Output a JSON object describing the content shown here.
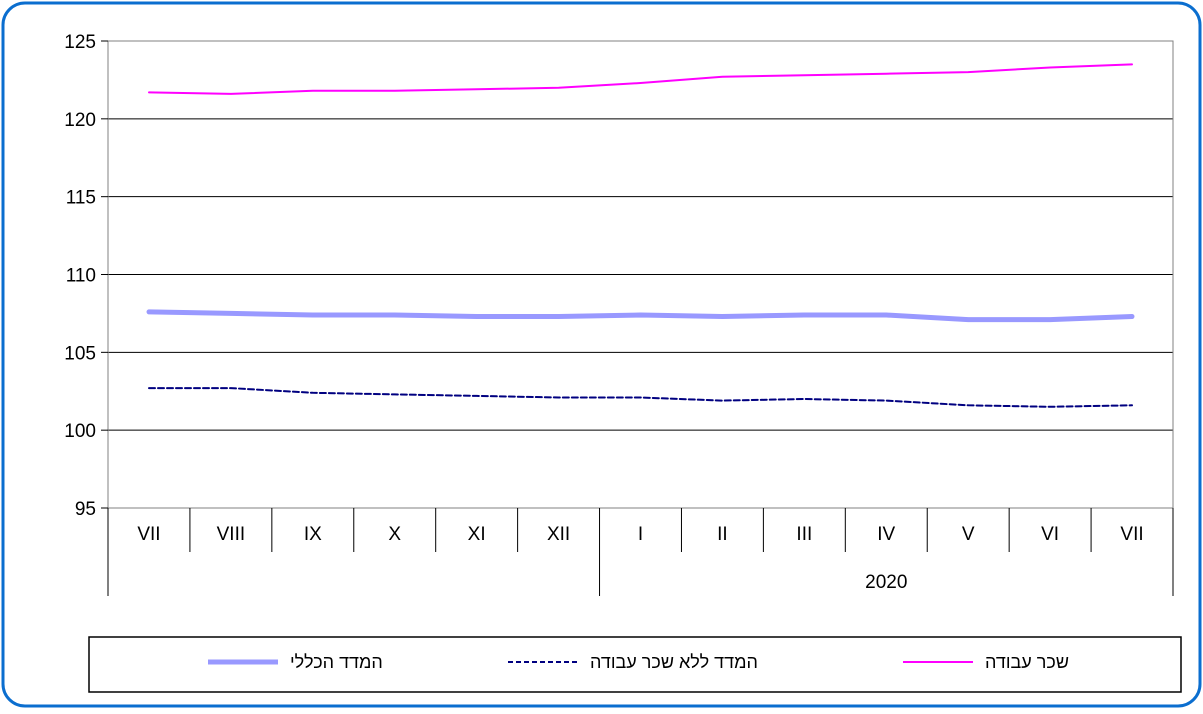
{
  "chart_data": {
    "type": "line",
    "title": "",
    "xlabel": "",
    "ylabel": "",
    "ylim": [
      95,
      125
    ],
    "yticks": [
      95,
      100,
      105,
      110,
      115,
      120,
      125
    ],
    "grid": true,
    "legend_position": "bottom",
    "categories": [
      "VII",
      "VIII",
      "IX",
      "X",
      "XI",
      "XII",
      "I",
      "II",
      "III",
      "IV",
      "V",
      "VI",
      "VII"
    ],
    "year_groups": [
      {
        "label": "",
        "start": 0,
        "end": 5
      },
      {
        "label": "2020",
        "start": 6,
        "end": 12
      }
    ],
    "series": [
      {
        "name": "שכר עבודה",
        "color": "#ff00ff",
        "style": "solid-thin",
        "values": [
          121.7,
          121.6,
          121.8,
          121.8,
          121.9,
          122.0,
          122.3,
          122.7,
          122.8,
          122.9,
          123.0,
          123.3,
          123.5
        ]
      },
      {
        "name": "המדד הכללי",
        "color": "#9999ff",
        "style": "solid-thick",
        "values": [
          107.6,
          107.5,
          107.4,
          107.4,
          107.3,
          107.3,
          107.4,
          107.3,
          107.4,
          107.4,
          107.1,
          107.1,
          107.3
        ]
      },
      {
        "name": "המדד ללא שכר עבודה",
        "color": "#000080",
        "style": "dashed",
        "values": [
          102.7,
          102.7,
          102.4,
          102.3,
          102.2,
          102.1,
          102.1,
          101.9,
          102.0,
          101.9,
          101.6,
          101.5,
          101.6
        ]
      }
    ]
  }
}
